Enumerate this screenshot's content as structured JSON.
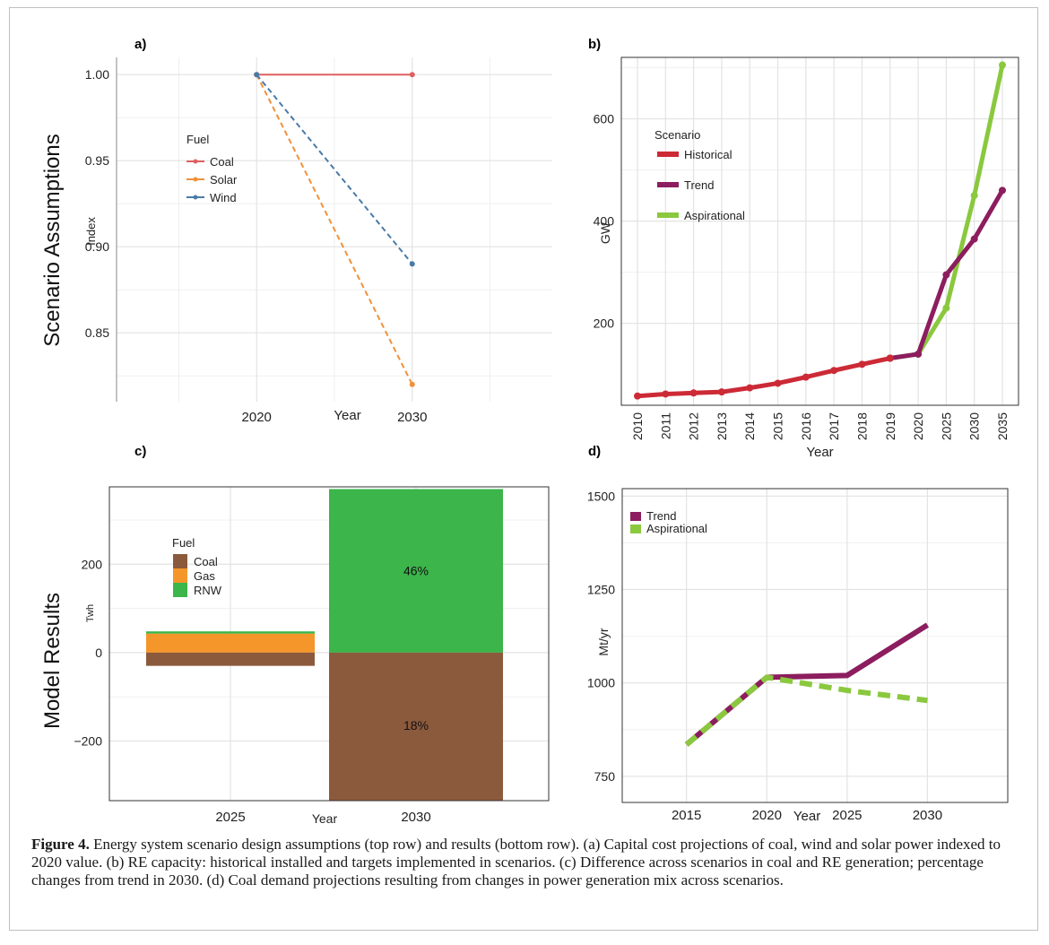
{
  "row_labels": {
    "top": "Scenario Assumptions",
    "bottom": "Model Results"
  },
  "caption": {
    "label": "Figure 4.",
    "text": " Energy system scenario design assumptions (top row) and results (bottom row). (a) Capital cost projections of coal, wind and solar power indexed to 2020 value. (b) RE capacity: historical installed and targets implemented in scenarios. (c) Difference across scenarios in coal and RE generation; percentage changes from trend in 2030. (d) Coal demand projections resulting from changes in power generation mix across scenarios."
  },
  "chart_data": [
    {
      "panel": "a)",
      "type": "line",
      "xlabel": "Year",
      "ylabel": "Index",
      "x": [
        2020,
        2030
      ],
      "ylim": [
        0.81,
        1.01
      ],
      "yticks": [
        0.85,
        0.9,
        0.95,
        1.0
      ],
      "yticklabels": [
        "0.85",
        "0.90",
        "0.95",
        "1.00"
      ],
      "legend_title": "Fuel",
      "series": [
        {
          "name": "Coal",
          "values": [
            1.0,
            1.0
          ],
          "color": "#e06060",
          "dashed": false
        },
        {
          "name": "Solar",
          "values": [
            1.0,
            0.82
          ],
          "color": "#f0903a",
          "dashed": true
        },
        {
          "name": "Wind",
          "values": [
            1.0,
            0.89
          ],
          "color": "#4a7aa8",
          "dashed": true
        }
      ],
      "grid": true
    },
    {
      "panel": "b)",
      "type": "line",
      "xlabel": "Year",
      "ylabel": "GW",
      "categories": [
        "2010",
        "2011",
        "2012",
        "2013",
        "2014",
        "2015",
        "2016",
        "2017",
        "2018",
        "2019",
        "2020",
        "2025",
        "2030",
        "2035"
      ],
      "ylim": [
        40,
        720
      ],
      "yticks": [
        200,
        400,
        600
      ],
      "legend_title": "Scenario",
      "series": [
        {
          "name": "Historical",
          "values": [
            58,
            62,
            64,
            66,
            74,
            83,
            95,
            108,
            120,
            132,
            null,
            null,
            null,
            null
          ],
          "color": "#cc2a36"
        },
        {
          "name": "Trend",
          "values": [
            null,
            null,
            null,
            null,
            null,
            null,
            null,
            null,
            null,
            132,
            140,
            295,
            365,
            460
          ],
          "color": "#8c1d5e"
        },
        {
          "name": "Aspirational",
          "values": [
            null,
            null,
            null,
            null,
            null,
            null,
            null,
            null,
            null,
            132,
            140,
            230,
            450,
            705
          ],
          "color": "#8ac83e"
        }
      ],
      "grid": true
    },
    {
      "panel": "c)",
      "type": "bar",
      "xlabel": "Year",
      "ylabel": "Twh",
      "categories": [
        "2025",
        "2030"
      ],
      "ylim": [
        -335,
        375
      ],
      "yticks": [
        -200,
        0,
        200
      ],
      "yticklabels": [
        "−200",
        "0",
        "200"
      ],
      "legend_title": "Fuel",
      "series": [
        {
          "name": "Coal",
          "values": [
            -30,
            -335
          ],
          "color": "#8b5a3c"
        },
        {
          "name": "Gas",
          "values": [
            43,
            0
          ],
          "color": "#f5962a"
        },
        {
          "name": "RNW",
          "values": [
            5,
            370
          ],
          "color": "#3cb54a"
        }
      ],
      "annotations": [
        {
          "text": "46%",
          "category": "2030",
          "y": 185
        },
        {
          "text": "18%",
          "category": "2030",
          "y": -165
        }
      ],
      "grid": true
    },
    {
      "panel": "d)",
      "type": "line",
      "xlabel": "Year",
      "ylabel": "Mt/yr",
      "x": [
        2015,
        2020,
        2025,
        2030
      ],
      "xlim": [
        2011,
        2035
      ],
      "ylim": [
        680,
        1520
      ],
      "yticks": [
        750,
        1000,
        1250,
        1500
      ],
      "series": [
        {
          "name": "Trend",
          "values": [
            835,
            1015,
            1020,
            1155
          ],
          "color": "#8c1d5e",
          "dashed": false
        },
        {
          "name": "Aspirational",
          "values": [
            835,
            1015,
            980,
            953
          ],
          "color": "#8ac83e",
          "dashed": true
        }
      ],
      "grid": true
    }
  ]
}
